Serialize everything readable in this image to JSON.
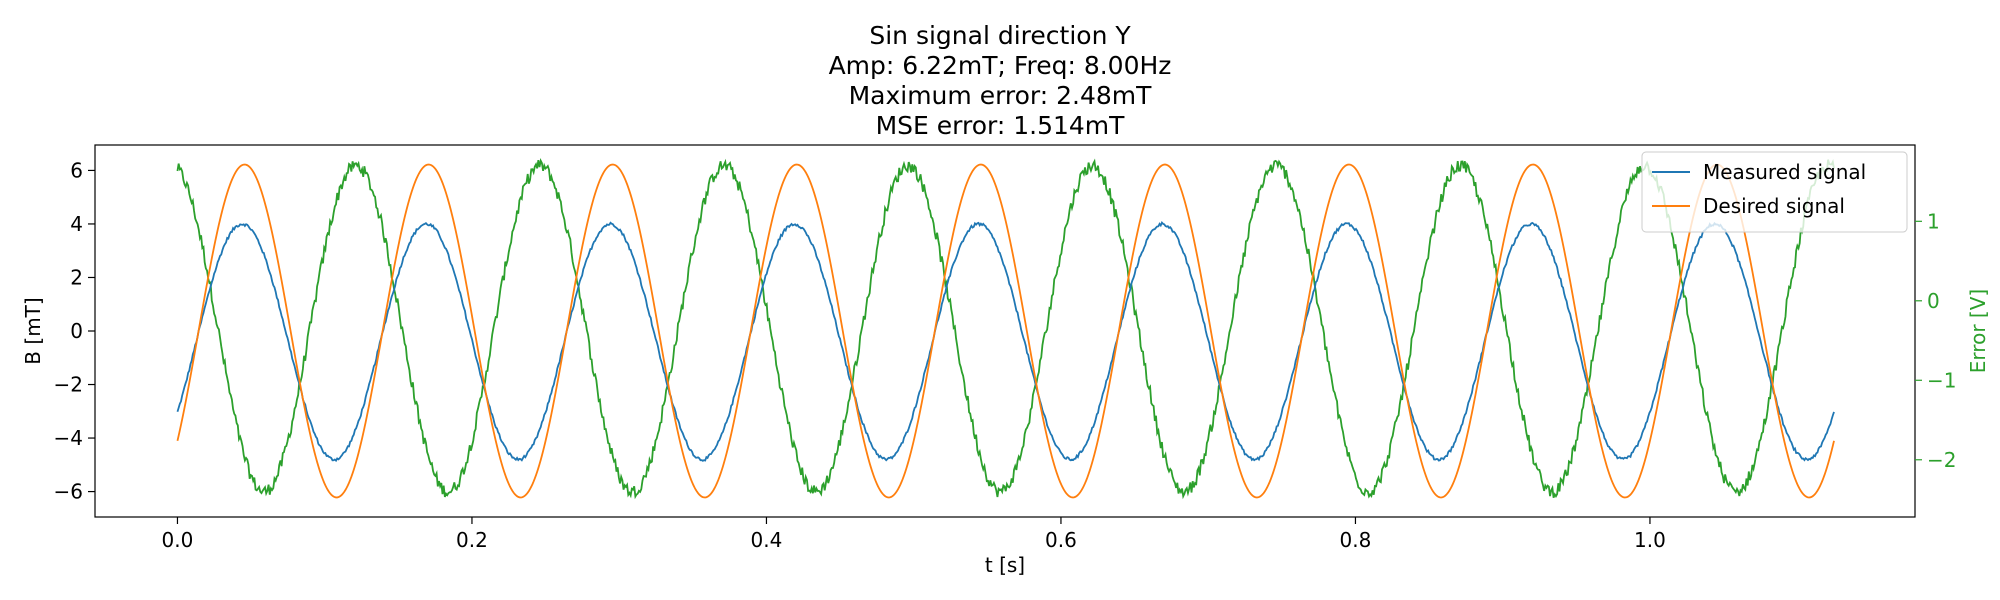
{
  "chart_data": {
    "type": "line",
    "title_lines": [
      "Sin signal direction Y",
      "Amp: 6.22mT; Freq: 8.00Hz",
      "Maximum error: 2.48mT",
      "MSE error: 1.514mT"
    ],
    "xlabel": "t [s]",
    "ylabel_left": "B [mT]",
    "ylabel_right": "Error [V]",
    "xlim": [
      -0.056,
      1.18
    ],
    "ylim_left": [
      -6.95,
      6.95
    ],
    "ylim_right": [
      -2.72,
      1.96
    ],
    "x_ticks": [
      0.0,
      0.2,
      0.4,
      0.6,
      0.8,
      1.0
    ],
    "x_tick_labels": [
      "0.0",
      "0.2",
      "0.4",
      "0.6",
      "0.8",
      "1.0"
    ],
    "y_left_ticks": [
      -6,
      -4,
      -2,
      0,
      2,
      4,
      6
    ],
    "y_left_tick_labels": [
      "−6",
      "−4",
      "−2",
      "0",
      "2",
      "4",
      "6"
    ],
    "y_right_ticks": [
      -2,
      -1,
      0,
      1
    ],
    "y_right_tick_labels": [
      "−2",
      "−1",
      "0",
      "1"
    ],
    "grid": false,
    "legend_position": "top-right",
    "t_range": [
      0,
      1.125
    ],
    "series": [
      {
        "name": "Measured signal",
        "color": "#1f77b4",
        "axis": "left",
        "amplitude": 4.4,
        "offset": -0.4,
        "frequency_hz": 8.0,
        "start_value": -2.7,
        "end_value": -2.9
      },
      {
        "name": "Desired signal",
        "color": "#ff7f0e",
        "axis": "left",
        "amplitude": 6.22,
        "frequency_hz": 8.0,
        "start_value": -4.2,
        "end_value": -4.5
      },
      {
        "name": "",
        "color": "#2ca02c",
        "axis": "right",
        "min": -2.4,
        "max": 1.7,
        "frequency_hz": 8.0,
        "start_value": 1.6,
        "end_value": 1.7
      }
    ]
  }
}
